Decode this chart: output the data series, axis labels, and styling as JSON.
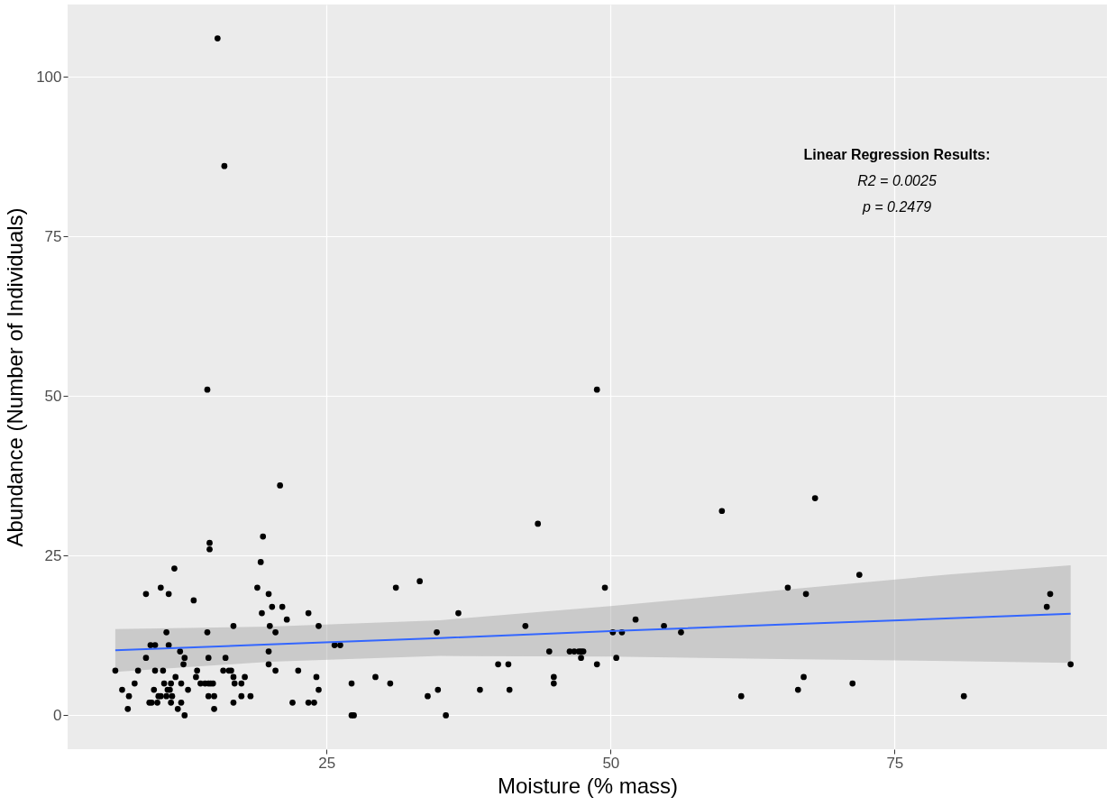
{
  "chart_data": {
    "type": "scatter",
    "xlabel": "Moisture (% mass)",
    "ylabel": "Abundance (Number of Individuals)",
    "xlim": [
      2.2,
      93.7
    ],
    "ylim": [
      -5.3,
      111.3
    ],
    "xticks": [
      25,
      50,
      75
    ],
    "yticks": [
      0,
      25,
      50,
      75,
      100
    ],
    "grid": true,
    "marker": "circle",
    "annotations": [
      "Linear Regression Results:",
      "R2 = 0.0025",
      "p = 0.2479"
    ],
    "series": [
      {
        "color": "#000000",
        "x": [
          6.4,
          7.0,
          7.6,
          7.5,
          8.1,
          8.4,
          9.1,
          9.1,
          9.5,
          9.9,
          9.4,
          9.6,
          9.8,
          9.9,
          10.1,
          10.2,
          10.4,
          10.4,
          10.6,
          10.7,
          10.9,
          11.1,
          11.1,
          10.9,
          11.0,
          11.2,
          11.3,
          11.4,
          11.3,
          11.6,
          11.7,
          11.9,
          12.1,
          12.2,
          12.2,
          12.4,
          12.5,
          12.5,
          12.8,
          13.3,
          13.5,
          13.6,
          13.9,
          14.3,
          14.6,
          14.8,
          15.0,
          14.5,
          14.6,
          14.7,
          14.7,
          14.6,
          15.1,
          15.1,
          14.5,
          15.9,
          16.4,
          16.6,
          16.1,
          16.8,
          16.8,
          16.9,
          16.8,
          17.5,
          17.5,
          17.8,
          18.3,
          18.9,
          19.2,
          19.4,
          19.3,
          19.9,
          20.0,
          20.5,
          19.9,
          19.9,
          20.2,
          21.1,
          20.5,
          21.5,
          20.9,
          22.5,
          22.0,
          23.4,
          23.4,
          23.9,
          24.1,
          24.3,
          24.3,
          25.7,
          15.4,
          16.0,
          26.2,
          27.2,
          27.2,
          27.4,
          29.3,
          30.6,
          31.1,
          33.2,
          33.9,
          34.7,
          34.8,
          35.5,
          36.6,
          38.5,
          40.1,
          41.0,
          41.1,
          42.5,
          44.6,
          45.0,
          45.0,
          49.5,
          46.4,
          46.8,
          47.2,
          47.4,
          47.6,
          47.4,
          48.8,
          50.2,
          51.0,
          50.5,
          52.2,
          54.7,
          56.2,
          48.8,
          43.6,
          59.8,
          68.0,
          61.5,
          65.6,
          67.2,
          71.9,
          67.0,
          66.5,
          71.3,
          81.1,
          88.7,
          88.4,
          90.5
        ],
        "values": [
          7,
          4,
          3,
          1,
          5,
          7,
          9,
          19,
          11,
          11,
          2,
          2,
          4,
          7,
          2,
          3,
          3,
          20,
          7,
          5,
          13,
          11,
          19,
          3,
          4,
          4,
          2,
          3,
          5,
          23,
          6,
          1,
          10,
          5,
          2,
          8,
          9,
          0,
          4,
          18,
          6,
          7,
          5,
          5,
          5,
          5,
          5,
          13,
          9,
          27,
          26,
          3,
          3,
          1,
          51,
          7,
          7,
          7,
          9,
          14,
          6,
          5,
          2,
          5,
          3,
          6,
          3,
          20,
          24,
          28,
          16,
          19,
          14,
          13,
          10,
          8,
          17,
          17,
          7,
          15,
          36,
          7,
          2,
          16,
          2,
          2,
          6,
          14,
          4,
          11,
          106,
          86,
          11,
          5,
          0,
          0,
          6,
          5,
          20,
          21,
          3,
          13,
          4,
          0,
          16,
          4,
          8,
          8,
          4,
          14,
          10,
          6,
          5,
          20,
          10,
          10,
          10,
          10,
          10,
          9,
          8,
          13,
          13,
          9,
          15,
          14,
          13,
          51,
          30,
          32,
          34,
          3,
          20,
          19,
          22,
          6,
          4,
          5,
          3,
          19,
          17,
          8
        ]
      },
      {
        "type": "line",
        "color": "#3366ff",
        "marker": "none",
        "x": [
          6.4,
          20,
          35,
          50,
          65,
          80,
          90.5
        ],
        "values": [
          10.2,
          11.1,
          12.1,
          13.2,
          14.2,
          15.2,
          15.9
        ],
        "lower": [
          6.8,
          8.4,
          9.3,
          9.2,
          8.8,
          8.5,
          8.2
        ],
        "upper": [
          13.5,
          13.9,
          14.9,
          17.1,
          19.6,
          22.1,
          23.5
        ]
      }
    ]
  }
}
